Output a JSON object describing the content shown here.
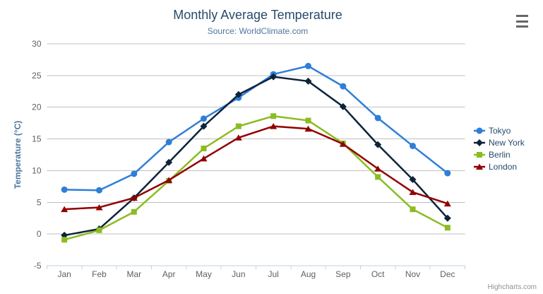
{
  "chart_data": {
    "type": "line",
    "title": "Monthly Average Temperature",
    "subtitle": "Source: WorldClimate.com",
    "categories": [
      "Jan",
      "Feb",
      "Mar",
      "Apr",
      "May",
      "Jun",
      "Jul",
      "Aug",
      "Sep",
      "Oct",
      "Nov",
      "Dec"
    ],
    "xlabel": "",
    "ylabel": "Temperature (°C)",
    "ylim": [
      -5,
      30
    ],
    "yticks": [
      -5,
      0,
      5,
      10,
      15,
      20,
      25,
      30
    ],
    "grid": true,
    "legend_position": "right",
    "series": [
      {
        "name": "Tokyo",
        "color": "#2f7ed8",
        "marker": "circle",
        "values": [
          7.0,
          6.9,
          9.5,
          14.5,
          18.2,
          21.5,
          25.2,
          26.5,
          23.3,
          18.3,
          13.9,
          9.6
        ]
      },
      {
        "name": "New York",
        "color": "#0d233a",
        "marker": "diamond",
        "values": [
          -0.2,
          0.8,
          5.7,
          11.3,
          17.0,
          22.0,
          24.8,
          24.1,
          20.1,
          14.1,
          8.6,
          2.5
        ]
      },
      {
        "name": "Berlin",
        "color": "#8bbc21",
        "marker": "square",
        "values": [
          -0.9,
          0.6,
          3.5,
          8.4,
          13.5,
          17.0,
          18.6,
          17.9,
          14.3,
          9.0,
          3.9,
          1.0
        ]
      },
      {
        "name": "London",
        "color": "#910000",
        "marker": "triangle",
        "values": [
          3.9,
          4.2,
          5.7,
          8.5,
          11.9,
          15.2,
          17.0,
          16.6,
          14.2,
          10.3,
          6.6,
          4.8
        ]
      }
    ]
  },
  "credit": {
    "label": "Highcharts.com"
  },
  "header": {
    "export_menu_icon": "hamburger-menu-icon"
  },
  "theme": {
    "title_color": "#274b6d",
    "subtitle_color": "#4d759e",
    "axis_title_color": "#4d759e",
    "tick_label_color": "#606060",
    "grid_line_color": "#c0c0c0",
    "axis_line_color": "#c0d0e0",
    "legend_text_color": "#274b6d",
    "credit_color": "#909090",
    "export_icon_color": "#666666",
    "background": "#ffffff"
  }
}
